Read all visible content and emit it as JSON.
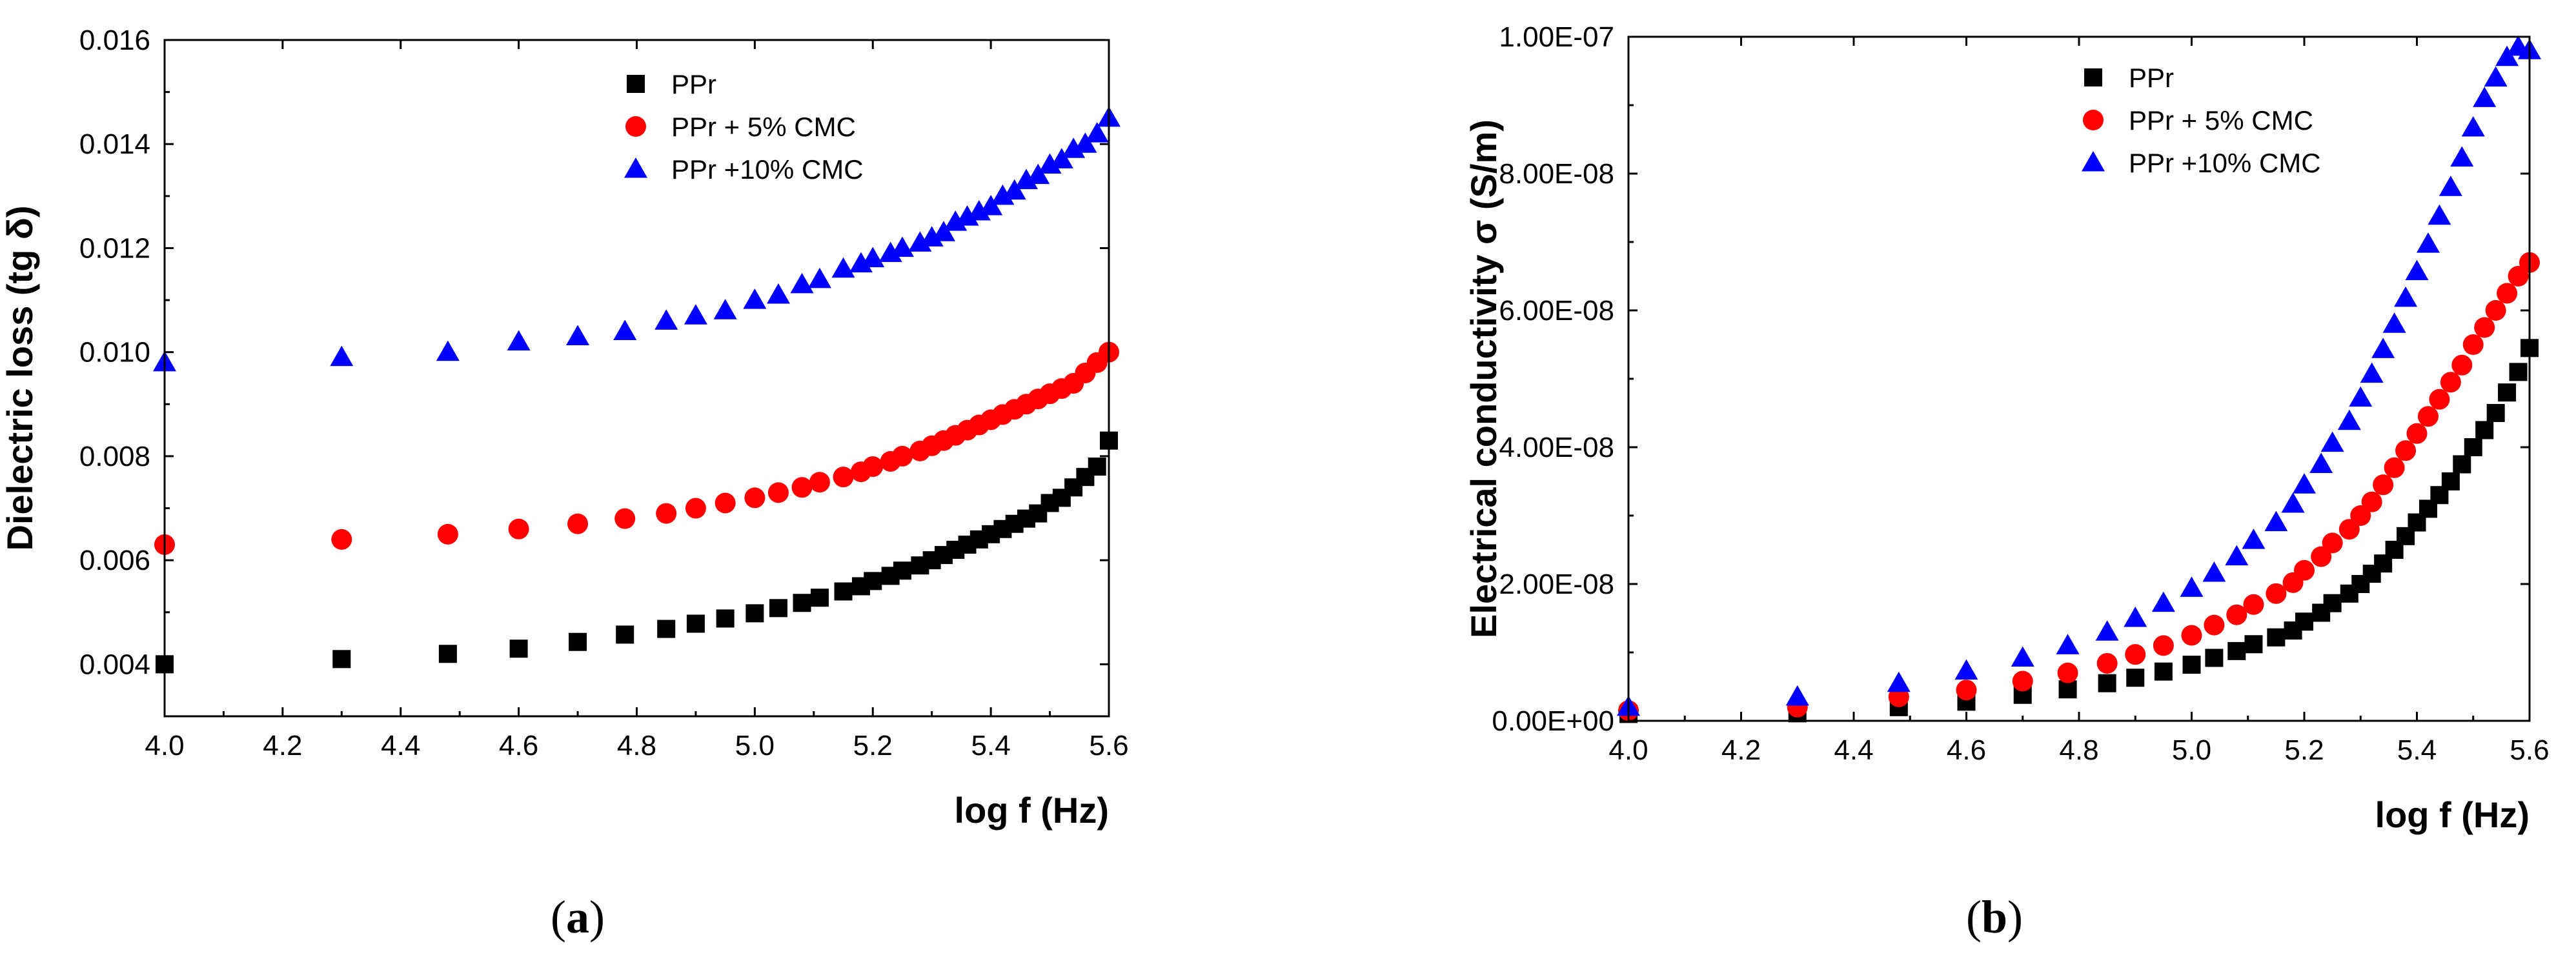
{
  "chart_data": [
    {
      "type": "scatter",
      "panel_label": "a",
      "xlabel": "log f (Hz)",
      "ylabel": "Dielectric loss (tg δ)",
      "xlim": [
        4.0,
        5.6
      ],
      "ylim": [
        0.003,
        0.016
      ],
      "xticks": [
        "4.0",
        "4.2",
        "4.4",
        "4.6",
        "4.8",
        "5.0",
        "5.2",
        "5.4",
        "5.6"
      ],
      "yticks": [
        "0.004",
        "0.006",
        "0.008",
        "0.010",
        "0.012",
        "0.014",
        "0.016"
      ],
      "legend_position": "top-right",
      "x": [
        4.0,
        4.3,
        4.48,
        4.6,
        4.7,
        4.78,
        4.85,
        4.9,
        4.95,
        5.0,
        5.04,
        5.08,
        5.11,
        5.15,
        5.18,
        5.2,
        5.23,
        5.25,
        5.28,
        5.3,
        5.32,
        5.34,
        5.36,
        5.38,
        5.4,
        5.42,
        5.44,
        5.46,
        5.48,
        5.5,
        5.52,
        5.54,
        5.56,
        5.58,
        5.6
      ],
      "series": [
        {
          "name": "PPr",
          "marker": "square",
          "color": "#000000",
          "values": [
            0.004,
            0.0041,
            0.0042,
            0.0043,
            0.00443,
            0.00457,
            0.00468,
            0.00478,
            0.00488,
            0.00498,
            0.00508,
            0.00518,
            0.00528,
            0.0054,
            0.0055,
            0.0056,
            0.0057,
            0.0058,
            0.0059,
            0.006,
            0.0061,
            0.0062,
            0.0063,
            0.0064,
            0.0065,
            0.0066,
            0.0067,
            0.0068,
            0.0069,
            0.0071,
            0.0072,
            0.0074,
            0.0076,
            0.0078,
            0.0083
          ]
        },
        {
          "name": "PPr + 5% CMC",
          "marker": "circle",
          "color": "#ff0000",
          "values": [
            0.0063,
            0.0064,
            0.0065,
            0.0066,
            0.0067,
            0.0068,
            0.0069,
            0.007,
            0.0071,
            0.0072,
            0.0073,
            0.0074,
            0.0075,
            0.0076,
            0.0077,
            0.0078,
            0.0079,
            0.008,
            0.0081,
            0.0082,
            0.0083,
            0.0084,
            0.0085,
            0.0086,
            0.0087,
            0.0088,
            0.0089,
            0.009,
            0.0091,
            0.0092,
            0.0093,
            0.0094,
            0.0096,
            0.0098,
            0.01
          ]
        },
        {
          "name": "PPr +10% CMC",
          "marker": "triangle",
          "color": "#0000ff",
          "values": [
            0.0098,
            0.0099,
            0.01,
            0.0102,
            0.0103,
            0.0104,
            0.0106,
            0.0107,
            0.0108,
            0.011,
            0.0111,
            0.0113,
            0.0114,
            0.0116,
            0.0117,
            0.0118,
            0.0119,
            0.012,
            0.0121,
            0.0122,
            0.0123,
            0.0125,
            0.0126,
            0.0127,
            0.0128,
            0.013,
            0.0131,
            0.0133,
            0.0134,
            0.0136,
            0.0137,
            0.0139,
            0.014,
            0.0142,
            0.0145
          ]
        }
      ]
    },
    {
      "type": "scatter",
      "panel_label": "b",
      "xlabel": "log f (Hz)",
      "ylabel": "Electrical conductivity σ (S/m)",
      "xlim": [
        4.0,
        5.6
      ],
      "ylim": [
        0,
        1e-07
      ],
      "xticks": [
        "4.0",
        "4.2",
        "4.4",
        "4.6",
        "4.8",
        "5.0",
        "5.2",
        "5.4",
        "5.6"
      ],
      "yticks": [
        "0.00E+00",
        "2.00E-08",
        "4.00E-08",
        "6.00E-08",
        "8.00E-08",
        "1.00E-07"
      ],
      "legend_position": "top-right",
      "x": [
        4.0,
        4.3,
        4.48,
        4.6,
        4.7,
        4.78,
        4.85,
        4.9,
        4.95,
        5.0,
        5.04,
        5.08,
        5.11,
        5.15,
        5.18,
        5.2,
        5.23,
        5.25,
        5.28,
        5.3,
        5.32,
        5.34,
        5.36,
        5.38,
        5.4,
        5.42,
        5.44,
        5.46,
        5.48,
        5.5,
        5.52,
        5.54,
        5.56,
        5.58,
        5.6
      ],
      "series": [
        {
          "name": "PPr",
          "marker": "square",
          "color": "#000000",
          "values": [
            1e-09,
            1.1e-09,
            2e-09,
            2.8e-09,
            3.8e-09,
            4.6e-09,
            5.5e-09,
            6.3e-09,
            7.2e-09,
            8.2e-09,
            9.2e-09,
            1.02e-08,
            1.12e-08,
            1.22e-08,
            1.32e-08,
            1.45e-08,
            1.58e-08,
            1.72e-08,
            1.86e-08,
            2e-08,
            2.15e-08,
            2.3e-08,
            2.5e-08,
            2.7e-08,
            2.9e-08,
            3.1e-08,
            3.3e-08,
            3.5e-08,
            3.75e-08,
            4e-08,
            4.25e-08,
            4.5e-08,
            4.8e-08,
            5.1e-08,
            5.45e-08
          ]
        },
        {
          "name": "PPr + 5% CMC",
          "marker": "circle",
          "color": "#ff0000",
          "values": [
            1.5e-09,
            2e-09,
            3.5e-09,
            4.5e-09,
            5.8e-09,
            7e-09,
            8.4e-09,
            9.7e-09,
            1.1e-08,
            1.25e-08,
            1.4e-08,
            1.55e-08,
            1.7e-08,
            1.86e-08,
            2.02e-08,
            2.2e-08,
            2.4e-08,
            2.6e-08,
            2.8e-08,
            3e-08,
            3.2e-08,
            3.45e-08,
            3.7e-08,
            3.95e-08,
            4.2e-08,
            4.45e-08,
            4.7e-08,
            4.95e-08,
            5.2e-08,
            5.5e-08,
            5.75e-08,
            6e-08,
            6.25e-08,
            6.5e-08,
            6.7e-08
          ]
        },
        {
          "name": "PPr +10% CMC",
          "marker": "triangle",
          "color": "#0000ff",
          "values": [
            2e-09,
            3.5e-09,
            5.5e-09,
            7.3e-09,
            9.2e-09,
            1.1e-08,
            1.3e-08,
            1.5e-08,
            1.72e-08,
            1.94e-08,
            2.16e-08,
            2.4e-08,
            2.64e-08,
            2.9e-08,
            3.17e-08,
            3.45e-08,
            3.75e-08,
            4.06e-08,
            4.38e-08,
            4.72e-08,
            5.07e-08,
            5.43e-08,
            5.8e-08,
            6.18e-08,
            6.57e-08,
            6.97e-08,
            7.38e-08,
            7.8e-08,
            8.23e-08,
            8.67e-08,
            9.1e-08,
            9.4e-08,
            9.7e-08,
            9.85e-08,
            9.8e-08
          ]
        }
      ]
    }
  ]
}
